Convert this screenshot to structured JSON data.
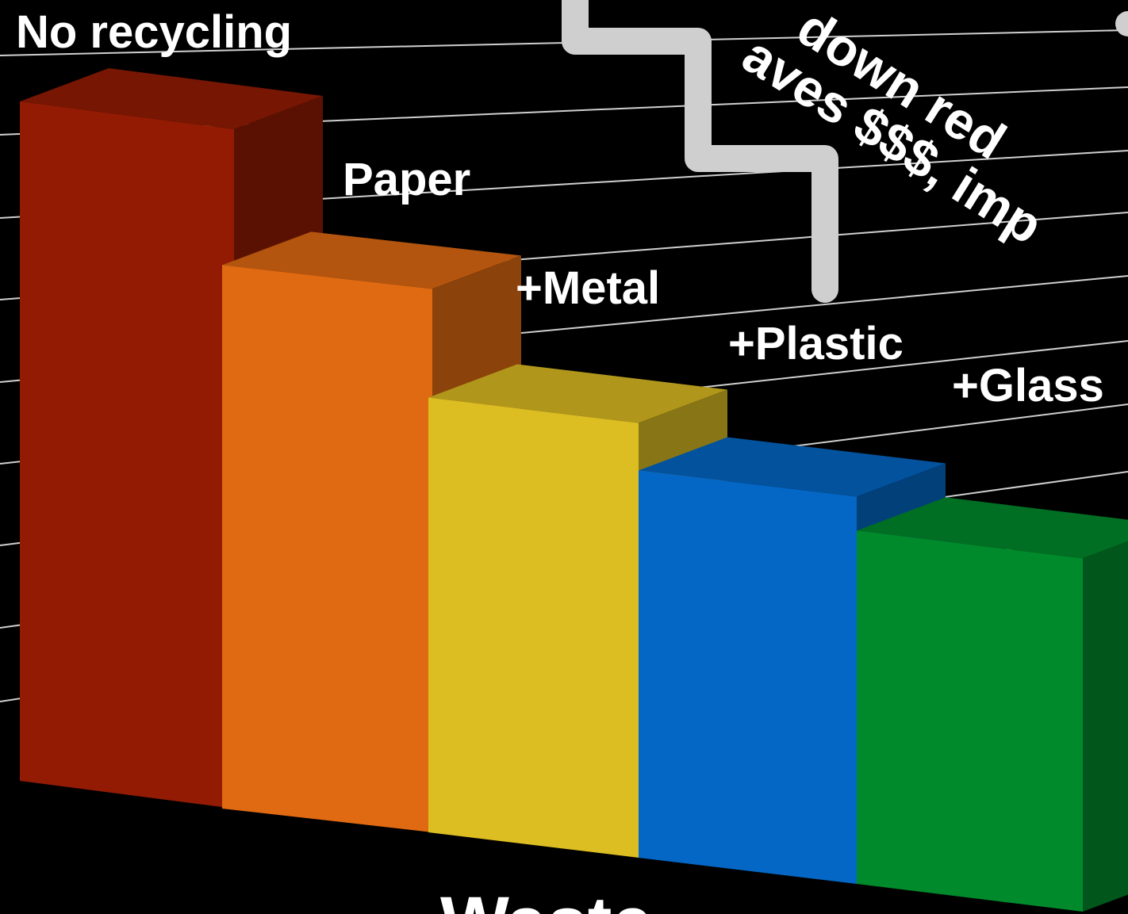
{
  "chart_data": {
    "type": "bar",
    "style": "3d",
    "categories": [
      "No recycling",
      "Paper",
      "+Metal",
      "+Plastic",
      "+Glass"
    ],
    "values": [
      100,
      80,
      64,
      57,
      52
    ],
    "xlabel": "Waste",
    "annotation_lines": [
      "down red",
      "aves $$$, imp"
    ],
    "colors": [
      "#931b04",
      "#e06a12",
      "#dcbd22",
      "#0467c5",
      "#008a2c"
    ],
    "grid": true,
    "legend": "none"
  }
}
